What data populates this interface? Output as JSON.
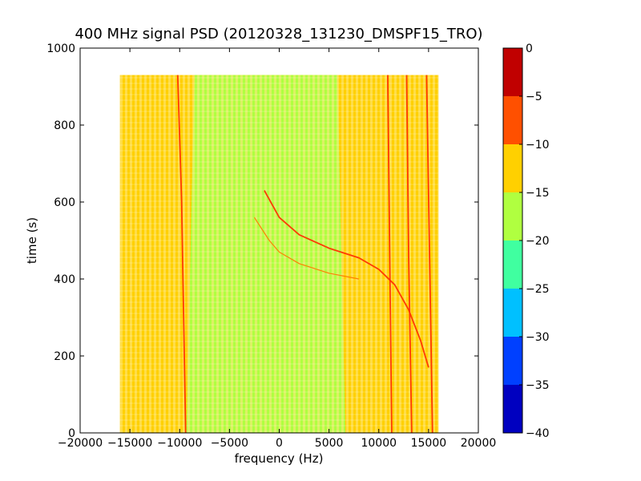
{
  "chart_data": {
    "type": "heatmap",
    "title": "400 MHz signal PSD (20120328_131230_DMSPF15_TRO)",
    "xlabel": "frequency (Hz)",
    "ylabel": "time (s)",
    "xlim": [
      -20000,
      20000
    ],
    "ylim": [
      0,
      1000
    ],
    "xticks": [
      -20000,
      -15000,
      -10000,
      -5000,
      0,
      5000,
      10000,
      15000,
      20000
    ],
    "xtick_labels": [
      "−20000",
      "−15000",
      "−10000",
      "−5000",
      "0",
      "5000",
      "10000",
      "15000",
      "20000"
    ],
    "yticks": [
      0,
      200,
      400,
      600,
      800,
      1000
    ],
    "ytick_labels": [
      "0",
      "200",
      "400",
      "600",
      "800",
      "1000"
    ],
    "data_extent": {
      "x": [
        -16000,
        16000
      ],
      "y": [
        0,
        930
      ]
    },
    "colorbar": {
      "levels": [
        -40,
        -35,
        -30,
        -25,
        -20,
        -15,
        -10,
        -5,
        0
      ],
      "tick_labels": [
        "−40",
        "−35",
        "−30",
        "−25",
        "−20",
        "−15",
        "−10",
        "−5",
        "0"
      ],
      "colors": [
        "#0000c0",
        "#0040ff",
        "#00c0ff",
        "#40ffa0",
        "#b0ff40",
        "#ffd000",
        "#ff5000",
        "#c00000"
      ]
    },
    "regions": [
      {
        "name": "background",
        "x": [
          -16000,
          16000
        ],
        "level_range": [
          -15,
          -10
        ],
        "color": "#ffd000"
      },
      {
        "name": "central band",
        "x": [
          -9000,
          6000
        ],
        "level_range": [
          -20,
          -15
        ],
        "color": "#b0ff40"
      }
    ],
    "series": [
      {
        "name": "",
        "x": [
          -10200,
          -9800,
          -9600,
          -9400
        ],
        "y": [
          930,
          600,
          300,
          0
        ],
        "level": -5
      },
      {
        "name": "",
        "x": [
          10900,
          11100,
          11300
        ],
        "y": [
          930,
          465,
          0
        ],
        "level": -5
      },
      {
        "name": "",
        "x": [
          12800,
          13000,
          13300
        ],
        "y": [
          930,
          465,
          0
        ],
        "level": -5
      },
      {
        "name": "",
        "x": [
          14800,
          15100,
          15400
        ],
        "y": [
          930,
          465,
          0
        ],
        "level": -5
      },
      {
        "name": "",
        "x": [
          -1500,
          0,
          2000,
          5000,
          8000,
          10000,
          11600,
          13000,
          14200,
          15000
        ],
        "y": [
          630,
          560,
          515,
          480,
          455,
          425,
          385,
          320,
          240,
          170
        ],
        "level": -5
      },
      {
        "name": "",
        "x": [
          -2500,
          -1000,
          0,
          2000,
          5000,
          8000
        ],
        "y": [
          560,
          500,
          470,
          440,
          415,
          400
        ],
        "level": -10
      }
    ]
  }
}
